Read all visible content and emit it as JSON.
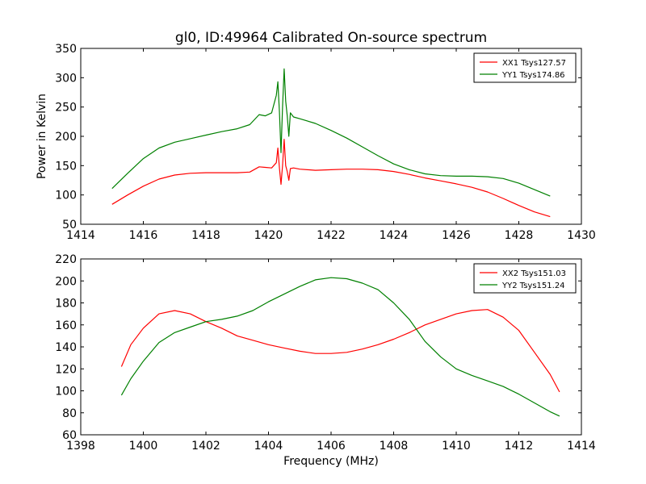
{
  "chart_data": [
    {
      "type": "line",
      "title": "gl0, ID:49964 Calibrated On-source spectrum",
      "xlabel": "",
      "ylabel": "Power in Kelvin",
      "xlim": [
        1414,
        1430
      ],
      "ylim": [
        50,
        350
      ],
      "xticks": [
        1414,
        1416,
        1418,
        1420,
        1422,
        1424,
        1426,
        1428,
        1430
      ],
      "yticks": [
        50,
        100,
        150,
        200,
        250,
        300,
        350
      ],
      "grid": false,
      "legend": "top-right",
      "series": [
        {
          "name": "XX1 Tsys127.57",
          "color": "#ff0000",
          "x": [
            1415.0,
            1415.5,
            1416.0,
            1416.5,
            1417.0,
            1417.5,
            1418.0,
            1418.5,
            1419.0,
            1419.4,
            1419.7,
            1419.9,
            1420.1,
            1420.25,
            1420.3,
            1420.35,
            1420.4,
            1420.45,
            1420.5,
            1420.55,
            1420.6,
            1420.65,
            1420.7,
            1420.8,
            1421.0,
            1421.5,
            1422.0,
            1422.5,
            1423.0,
            1423.5,
            1424.0,
            1424.5,
            1425.0,
            1425.5,
            1426.0,
            1426.5,
            1427.0,
            1427.5,
            1428.0,
            1428.5,
            1429.0
          ],
          "y": [
            84,
            100,
            115,
            127,
            134,
            137,
            138,
            138,
            138,
            139,
            148,
            147,
            146,
            155,
            180,
            145,
            118,
            150,
            195,
            150,
            140,
            125,
            145,
            146,
            144,
            142,
            143,
            144,
            144,
            143,
            140,
            135,
            129,
            124,
            119,
            113,
            105,
            94,
            82,
            71,
            63
          ]
        },
        {
          "name": "YY1 Tsys174.86",
          "color": "#008000",
          "x": [
            1415.0,
            1415.5,
            1416.0,
            1416.5,
            1417.0,
            1417.5,
            1418.0,
            1418.5,
            1419.0,
            1419.4,
            1419.7,
            1419.9,
            1420.1,
            1420.25,
            1420.3,
            1420.35,
            1420.4,
            1420.45,
            1420.5,
            1420.55,
            1420.6,
            1420.65,
            1420.7,
            1420.8,
            1421.0,
            1421.5,
            1422.0,
            1422.5,
            1423.0,
            1423.5,
            1424.0,
            1424.5,
            1425.0,
            1425.5,
            1426.0,
            1426.5,
            1427.0,
            1427.5,
            1428.0,
            1428.5,
            1429.0
          ],
          "y": [
            111,
            137,
            162,
            180,
            190,
            196,
            202,
            208,
            213,
            220,
            237,
            235,
            240,
            270,
            293,
            240,
            172,
            250,
            315,
            260,
            235,
            200,
            240,
            233,
            230,
            222,
            210,
            197,
            182,
            167,
            153,
            143,
            136,
            133,
            132,
            132,
            131,
            128,
            120,
            109,
            98
          ]
        }
      ]
    },
    {
      "type": "line",
      "title": "",
      "xlabel": "Frequency (MHz)",
      "ylabel": "",
      "xlim": [
        1398,
        1414
      ],
      "ylim": [
        60,
        220
      ],
      "xticks": [
        1398,
        1400,
        1402,
        1404,
        1406,
        1408,
        1410,
        1412,
        1414
      ],
      "yticks": [
        60,
        80,
        100,
        120,
        140,
        160,
        180,
        200,
        220
      ],
      "grid": false,
      "legend": "top-right",
      "series": [
        {
          "name": "XX2 Tsys151.03",
          "color": "#ff0000",
          "x": [
            1399.3,
            1399.6,
            1400.0,
            1400.5,
            1401.0,
            1401.5,
            1402.0,
            1402.5,
            1403.0,
            1403.5,
            1404.0,
            1404.5,
            1405.0,
            1405.5,
            1406.0,
            1406.5,
            1407.0,
            1407.5,
            1408.0,
            1408.5,
            1409.0,
            1409.5,
            1410.0,
            1410.5,
            1411.0,
            1411.5,
            1412.0,
            1412.5,
            1413.0,
            1413.3
          ],
          "y": [
            122,
            142,
            157,
            170,
            173,
            170,
            163,
            157,
            150,
            146,
            142,
            139,
            136,
            134,
            134,
            135,
            138,
            142,
            147,
            153,
            160,
            165,
            170,
            173,
            174,
            167,
            155,
            135,
            115,
            99
          ]
        },
        {
          "name": "YY2 Tsys151.24",
          "color": "#008000",
          "x": [
            1399.3,
            1399.6,
            1400.0,
            1400.5,
            1401.0,
            1401.5,
            1402.0,
            1402.5,
            1403.0,
            1403.5,
            1404.0,
            1404.5,
            1405.0,
            1405.5,
            1406.0,
            1406.5,
            1407.0,
            1407.5,
            1408.0,
            1408.5,
            1409.0,
            1409.5,
            1410.0,
            1410.5,
            1411.0,
            1411.5,
            1412.0,
            1412.5,
            1413.0,
            1413.3
          ],
          "y": [
            96,
            111,
            127,
            144,
            153,
            158,
            163,
            165,
            168,
            173,
            181,
            188,
            195,
            201,
            203,
            202,
            198,
            192,
            180,
            165,
            145,
            131,
            120,
            114,
            109,
            104,
            97,
            89,
            81,
            77
          ]
        }
      ]
    }
  ]
}
